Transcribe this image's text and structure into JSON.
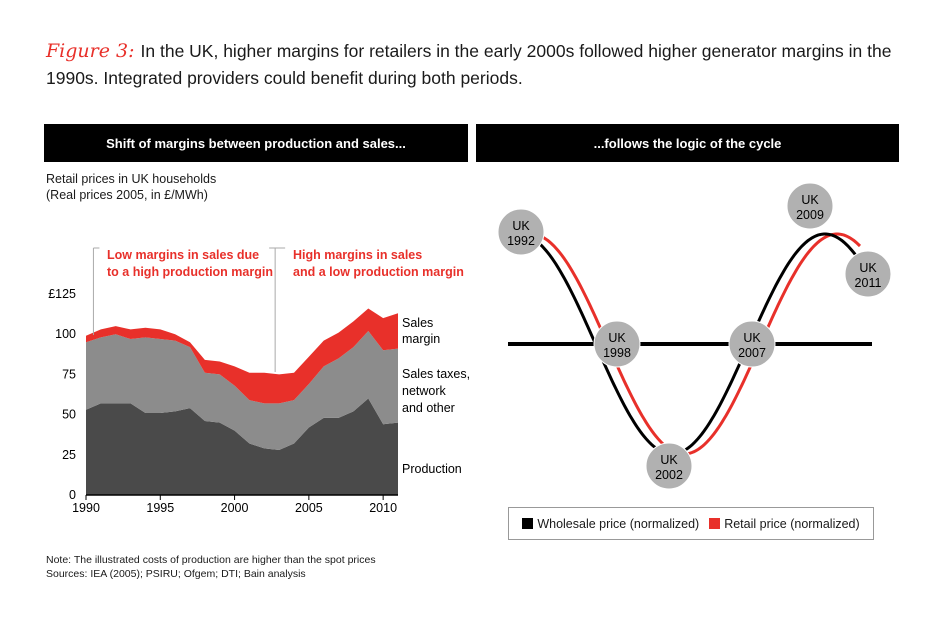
{
  "figure": {
    "label": "Figure 3:",
    "title": "In the UK, higher margins for retailers in the early 2000s followed higher generator margins in the 1990s. Integrated providers could benefit during both periods."
  },
  "left_panel": {
    "header": "Shift of margins between production and sales...",
    "subtitle_line1": "Retail prices in UK households",
    "subtitle_line2": "(Real prices 2005, in £/MWh)"
  },
  "right_panel": {
    "header": "...follows the logic of the cycle"
  },
  "chart_data": [
    {
      "type": "area",
      "title": "Shift of margins between production and sales...",
      "ylabel": "Retail prices in UK households (Real prices 2005, in £/MWh)",
      "x": [
        1990,
        1991,
        1992,
        1993,
        1994,
        1995,
        1996,
        1997,
        1998,
        1999,
        2000,
        2001,
        2002,
        2003,
        2004,
        2005,
        2006,
        2007,
        2008,
        2009,
        2010,
        2011
      ],
      "series": [
        {
          "name": "Production",
          "color": "#4a4a4a",
          "values": [
            53,
            57,
            57,
            57,
            51,
            51,
            52,
            54,
            46,
            45,
            40,
            32,
            29,
            28,
            32,
            42,
            48,
            48,
            52,
            60,
            44,
            45
          ]
        },
        {
          "name": "Sales taxes, network and other",
          "color": "#8c8c8c",
          "values": [
            42,
            41,
            43,
            40,
            47,
            46,
            44,
            38,
            30,
            30,
            28,
            27,
            28,
            29,
            27,
            27,
            32,
            37,
            40,
            42,
            46,
            46
          ]
        },
        {
          "name": "Sales margin",
          "color": "#e8302a",
          "values": [
            4,
            5,
            5,
            6,
            6,
            6,
            4,
            3,
            8,
            8,
            12,
            17,
            19,
            18,
            17,
            17,
            16,
            16,
            16,
            14,
            20,
            22
          ]
        }
      ],
      "series_labels": [
        "Sales margin",
        "Sales taxes, network and other",
        "Production"
      ],
      "x_ticks": [
        1990,
        1995,
        2000,
        2005,
        2010
      ],
      "y_ticks": [
        0,
        25,
        50,
        75,
        100,
        125
      ],
      "y_tick_labels": [
        "0",
        "25",
        "50",
        "75",
        "100",
        "£125"
      ],
      "xlim": [
        1990,
        2011
      ],
      "ylim": [
        0,
        125
      ],
      "annotations": [
        {
          "text_line1": "Low margins in sales due",
          "text_line2": "to a high production margin",
          "x_start": 1990.5,
          "x_end": 2003
        },
        {
          "text_line1": "High margins in sales",
          "text_line2": "and a low production margin",
          "x_start": 2003,
          "x_end": 2011
        }
      ]
    },
    {
      "type": "line",
      "title": "...follows the logic of the cycle",
      "series": [
        {
          "name": "Wholesale price (normalized)",
          "color": "#000000"
        },
        {
          "name": "Retail price (normalized)",
          "color": "#e8302a"
        }
      ],
      "points": [
        {
          "line1": "UK",
          "line2": "1992",
          "phase": "peak"
        },
        {
          "line1": "UK",
          "line2": "1998",
          "phase": "down-crossing"
        },
        {
          "line1": "UK",
          "line2": "2002",
          "phase": "trough"
        },
        {
          "line1": "UK",
          "line2": "2007",
          "phase": "up-crossing"
        },
        {
          "line1": "UK",
          "line2": "2009",
          "phase": "peak"
        },
        {
          "line1": "UK",
          "line2": "2011",
          "phase": "decline"
        }
      ]
    }
  ],
  "legend": {
    "wholesale": "Wholesale price (normalized)",
    "retail": "Retail price (normalized)"
  },
  "notes": {
    "line1": "Note: The illustrated costs of production are higher than the spot prices",
    "line2": "Sources: IEA (2005); PSIRU; Ofgem; DTI; Bain analysis"
  }
}
